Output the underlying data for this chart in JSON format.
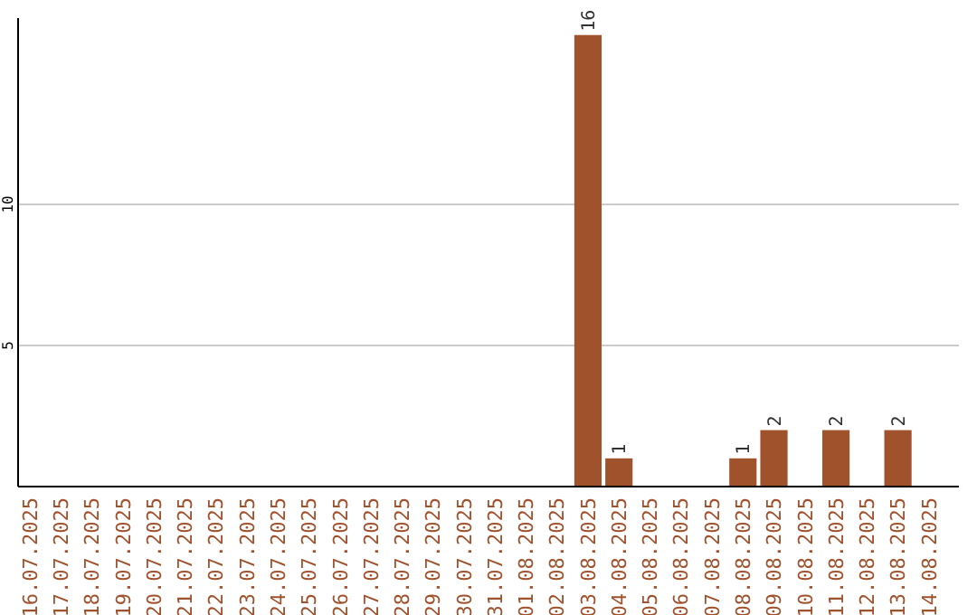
{
  "chart_data": {
    "type": "bar",
    "categories": [
      "16.07.2025",
      "17.07.2025",
      "18.07.2025",
      "19.07.2025",
      "20.07.2025",
      "21.07.2025",
      "22.07.2025",
      "23.07.2025",
      "24.07.2025",
      "25.07.2025",
      "26.07.2025",
      "27.07.2025",
      "28.07.2025",
      "29.07.2025",
      "30.07.2025",
      "31.07.2025",
      "01.08.2025",
      "02.08.2025",
      "03.08.2025",
      "04.08.2025",
      "05.08.2025",
      "06.08.2025",
      "07.08.2025",
      "08.08.2025",
      "09.08.2025",
      "10.08.2025",
      "11.08.2025",
      "12.08.2025",
      "13.08.2025",
      "14.08.2025"
    ],
    "values": [
      0,
      0,
      0,
      0,
      0,
      0,
      0,
      0,
      0,
      0,
      0,
      0,
      0,
      0,
      0,
      0,
      0,
      0,
      16,
      1,
      0,
      0,
      0,
      1,
      2,
      0,
      2,
      0,
      2,
      0
    ],
    "value_labels": [
      null,
      null,
      null,
      null,
      null,
      null,
      null,
      null,
      null,
      null,
      null,
      null,
      null,
      null,
      null,
      null,
      null,
      null,
      "16",
      "1",
      null,
      null,
      null,
      "1",
      "2",
      null,
      "2",
      null,
      "2",
      null
    ],
    "color": "#a0522d",
    "ylim": [
      0,
      16.6
    ],
    "yticks": [
      5,
      10
    ],
    "grid": "y"
  }
}
